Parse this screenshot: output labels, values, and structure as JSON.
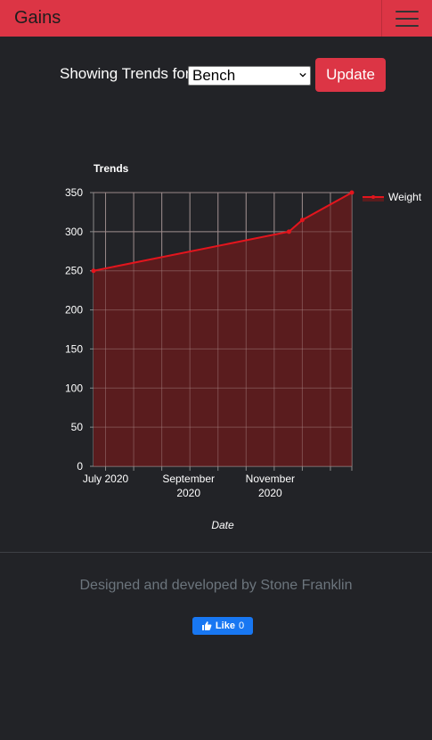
{
  "navbar": {
    "brand": "Gains",
    "toggle_icon": "hamburger-icon"
  },
  "controls": {
    "label": "Showing Trends for",
    "exercise_selected": "Bench",
    "update_label": "Update"
  },
  "chart_data": {
    "type": "area",
    "title": "Trends",
    "xlabel": "Date",
    "ylabel": "",
    "ylim": [
      0,
      350
    ],
    "yticks": [
      "350",
      "300",
      "250",
      "200",
      "150",
      "100",
      "50",
      "0"
    ],
    "xticks": [
      {
        "label1": "July 2020",
        "label2": ""
      },
      {
        "label1": "September",
        "label2": "2020"
      },
      {
        "label1": "November",
        "label2": "2020"
      }
    ],
    "series": [
      {
        "name": "Weight",
        "color": "#e3151d",
        "fill": "#5a1c1e",
        "x": [
          "2020-06-22",
          "2020-11-15",
          "2020-11-25",
          "2021-01-01"
        ],
        "values": [
          250,
          300,
          315,
          350
        ]
      }
    ],
    "legend": "top-right",
    "grid": true
  },
  "footer": {
    "credit": "Designed and developed by Stone Franklin",
    "like_label": "Like",
    "like_count": "0",
    "like_icon": "thumbs-up-icon"
  }
}
